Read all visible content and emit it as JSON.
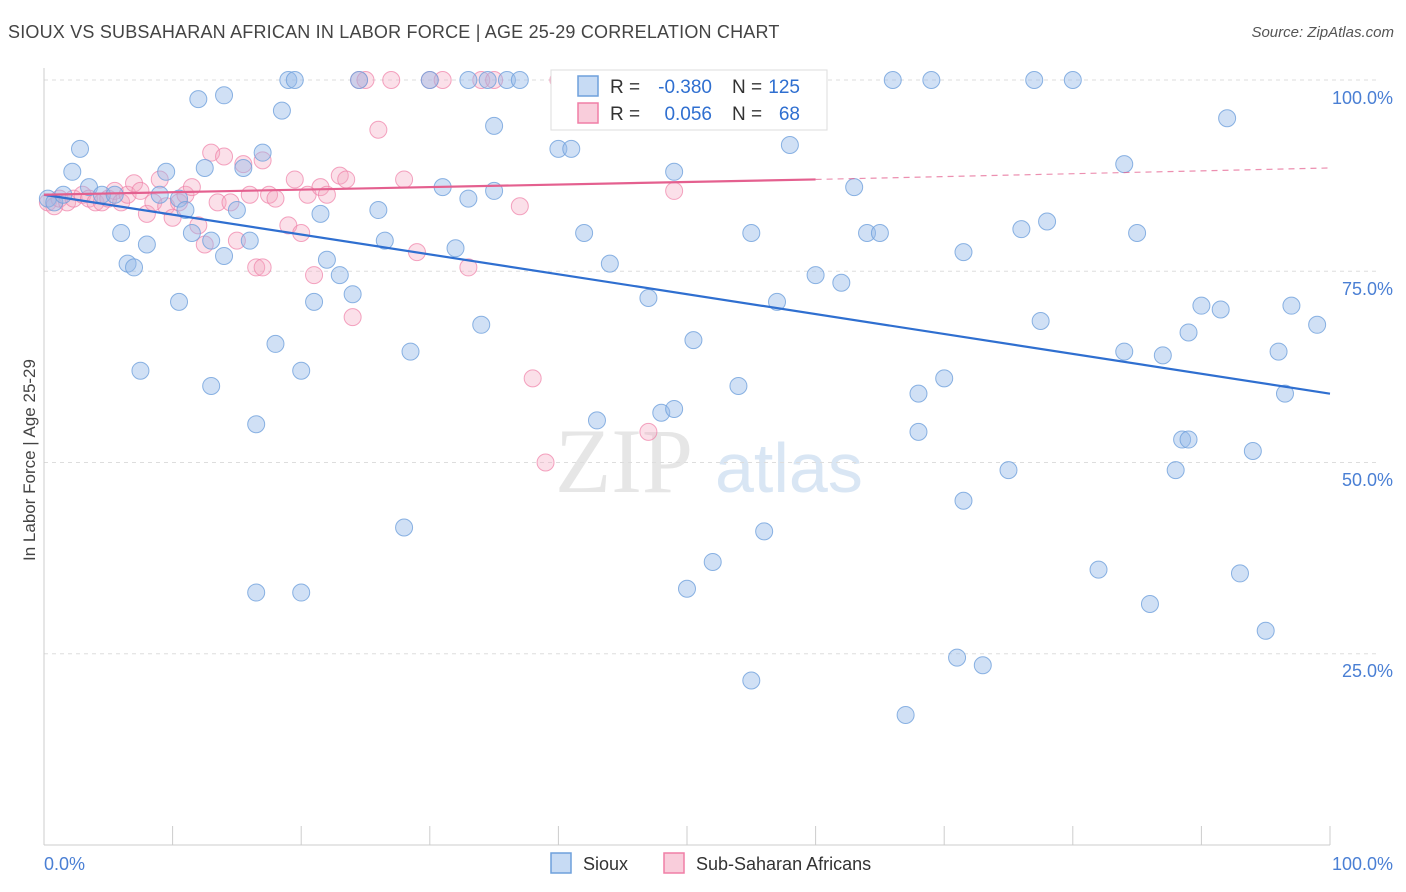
{
  "title": "SIOUX VS SUBSAHARAN AFRICAN IN LABOR FORCE | AGE 25-29 CORRELATION CHART",
  "source": "Source: ZipAtlas.com",
  "watermark": {
    "zip": "ZIP",
    "atlas": "atlas"
  },
  "colors": {
    "sioux": "#6fa0dc",
    "sioux_line": "#2f6fd0",
    "african": "#f07fa6",
    "african_line": "#e4608f",
    "tick_text": "#4a7fd4"
  },
  "legend_box": {
    "rows": [
      {
        "r_label": "R =",
        "r_value": "-0.380",
        "n_label": "N =",
        "n_value": "125"
      },
      {
        "r_label": "R =",
        "r_value": "0.056",
        "n_label": "N =",
        "n_value": "68"
      }
    ]
  },
  "bottom_legend": [
    "Sioux",
    "Sub-Saharan Africans"
  ],
  "chart_data": {
    "type": "scatter",
    "title": "SIOUX VS SUBSAHARAN AFRICAN IN LABOR FORCE | AGE 25-29 CORRELATION CHART",
    "xlabel": "",
    "ylabel": "In Labor Force | Age 25-29",
    "xlim": [
      0,
      100
    ],
    "ylim": [
      0,
      100
    ],
    "x_tick_labels": [
      "0.0%",
      "100.0%"
    ],
    "y_tick_labels": [
      "100.0%",
      "75.0%",
      "50.0%",
      "25.0%"
    ],
    "y_ticks": [
      100,
      75,
      50,
      25
    ],
    "grid": "horizontal dashed",
    "legend_position": "top-center",
    "series": [
      {
        "name": "Sioux",
        "r": -0.38,
        "n": 125,
        "trend": {
          "x": [
            0,
            100
          ],
          "y": [
            85,
            59
          ]
        },
        "points": [
          [
            0.3,
            84.5
          ],
          [
            0.8,
            84
          ],
          [
            1.5,
            85
          ],
          [
            2.2,
            88
          ],
          [
            2.8,
            91
          ],
          [
            3.5,
            86
          ],
          [
            4.5,
            85
          ],
          [
            5.5,
            85
          ],
          [
            6,
            80
          ],
          [
            6.5,
            76
          ],
          [
            7,
            75.5
          ],
          [
            7.5,
            62
          ],
          [
            8,
            78.5
          ],
          [
            9,
            85
          ],
          [
            9.5,
            88
          ],
          [
            10.5,
            84.5
          ],
          [
            10.5,
            71
          ],
          [
            11,
            83
          ],
          [
            11.5,
            80
          ],
          [
            12,
            97.5
          ],
          [
            12.5,
            88.5
          ],
          [
            13,
            79
          ],
          [
            13,
            60
          ],
          [
            14,
            98
          ],
          [
            14,
            77
          ],
          [
            15,
            83
          ],
          [
            15.5,
            88.5
          ],
          [
            16,
            79
          ],
          [
            16.5,
            55
          ],
          [
            16.5,
            33
          ],
          [
            17,
            90.5
          ],
          [
            18,
            65.5
          ],
          [
            18.5,
            96
          ],
          [
            19,
            100
          ],
          [
            19.5,
            100
          ],
          [
            20,
            62
          ],
          [
            20,
            33
          ],
          [
            21,
            71
          ],
          [
            21.5,
            82.5
          ],
          [
            22,
            76.5
          ],
          [
            23,
            74.5
          ],
          [
            24,
            72
          ],
          [
            24.5,
            100
          ],
          [
            26,
            83
          ],
          [
            26.5,
            79
          ],
          [
            28,
            41.5
          ],
          [
            28.5,
            64.5
          ],
          [
            30,
            100
          ],
          [
            31,
            86
          ],
          [
            32,
            78
          ],
          [
            33,
            84.5
          ],
          [
            33,
            100
          ],
          [
            34,
            68
          ],
          [
            34.5,
            100
          ],
          [
            35,
            94
          ],
          [
            35,
            85.5
          ],
          [
            36,
            100
          ],
          [
            37,
            100
          ],
          [
            40,
            91
          ],
          [
            41,
            91
          ],
          [
            42,
            80
          ],
          [
            43,
            55.5
          ],
          [
            44,
            76
          ],
          [
            47,
            71.5
          ],
          [
            48,
            56.5
          ],
          [
            49,
            57
          ],
          [
            49,
            88
          ],
          [
            50,
            33.5
          ],
          [
            50.5,
            66
          ],
          [
            52,
            37
          ],
          [
            54,
            60
          ],
          [
            55,
            21.5
          ],
          [
            55,
            80
          ],
          [
            56,
            41
          ],
          [
            57,
            71
          ],
          [
            58,
            91.5
          ],
          [
            58,
            100
          ],
          [
            60,
            74.5
          ],
          [
            62,
            73.5
          ],
          [
            63,
            86
          ],
          [
            64,
            80
          ],
          [
            65,
            80
          ],
          [
            66,
            100
          ],
          [
            67,
            17
          ],
          [
            68,
            59
          ],
          [
            68,
            54
          ],
          [
            69,
            100
          ],
          [
            70,
            61
          ],
          [
            71,
            24.5
          ],
          [
            71.5,
            45
          ],
          [
            71.5,
            77.5
          ],
          [
            73,
            23.5
          ],
          [
            75,
            49
          ],
          [
            76,
            80.5
          ],
          [
            77,
            100
          ],
          [
            77.5,
            68.5
          ],
          [
            78,
            81.5
          ],
          [
            80,
            100
          ],
          [
            82,
            36
          ],
          [
            84,
            64.5
          ],
          [
            84,
            89
          ],
          [
            85,
            80
          ],
          [
            86,
            31.5
          ],
          [
            87,
            64
          ],
          [
            88,
            49
          ],
          [
            88.5,
            53
          ],
          [
            89,
            53
          ],
          [
            89,
            67
          ],
          [
            90,
            70.5
          ],
          [
            91.5,
            70
          ],
          [
            92,
            95
          ],
          [
            93,
            35.5
          ],
          [
            94,
            51.5
          ],
          [
            95,
            28
          ],
          [
            96,
            64.5
          ],
          [
            96.5,
            59
          ],
          [
            97,
            70.5
          ],
          [
            99,
            68
          ]
        ]
      },
      {
        "name": "Sub-Saharan Africans",
        "r": 0.056,
        "n": 68,
        "trend": {
          "x": [
            0,
            60
          ],
          "y": [
            85,
            87
          ]
        },
        "trend_ext": {
          "x": [
            60,
            100
          ],
          "y": [
            87,
            88.5
          ]
        },
        "points": [
          [
            0.3,
            84
          ],
          [
            0.8,
            83.5
          ],
          [
            1.2,
            84.5
          ],
          [
            1.8,
            84
          ],
          [
            2.3,
            84.5
          ],
          [
            3,
            85
          ],
          [
            3.5,
            84.5
          ],
          [
            4,
            84
          ],
          [
            4.5,
            84
          ],
          [
            5,
            84.5
          ],
          [
            5.5,
            85.5
          ],
          [
            6,
            84
          ],
          [
            6.5,
            85
          ],
          [
            7,
            86.5
          ],
          [
            7.5,
            85.5
          ],
          [
            8,
            82.5
          ],
          [
            8.5,
            84
          ],
          [
            9,
            87
          ],
          [
            9.5,
            83.5
          ],
          [
            10,
            82
          ],
          [
            10.5,
            84
          ],
          [
            11,
            85
          ],
          [
            11.5,
            86
          ],
          [
            12,
            81
          ],
          [
            12.5,
            78.5
          ],
          [
            13,
            90.5
          ],
          [
            13.5,
            84
          ],
          [
            14,
            90
          ],
          [
            14.5,
            84
          ],
          [
            15,
            79
          ],
          [
            15.5,
            89
          ],
          [
            16,
            85
          ],
          [
            16.5,
            75.5
          ],
          [
            17,
            89.5
          ],
          [
            17,
            75.5
          ],
          [
            17.5,
            85
          ],
          [
            18,
            84.5
          ],
          [
            19,
            81
          ],
          [
            19.5,
            87
          ],
          [
            20,
            80
          ],
          [
            20.5,
            85
          ],
          [
            21,
            74.5
          ],
          [
            21.5,
            86
          ],
          [
            22,
            85
          ],
          [
            23,
            87.5
          ],
          [
            23.5,
            87
          ],
          [
            24,
            69
          ],
          [
            24.5,
            100
          ],
          [
            25,
            100
          ],
          [
            26,
            93.5
          ],
          [
            27,
            100
          ],
          [
            28,
            87
          ],
          [
            29,
            77.5
          ],
          [
            30,
            100
          ],
          [
            31,
            100
          ],
          [
            33,
            75.5
          ],
          [
            34,
            100
          ],
          [
            35,
            100
          ],
          [
            37,
            83.5
          ],
          [
            38,
            61
          ],
          [
            39,
            50
          ],
          [
            40,
            100
          ],
          [
            42,
            100
          ],
          [
            47,
            54
          ],
          [
            49,
            85.5
          ],
          [
            55,
            100
          ],
          [
            59,
            100
          ]
        ]
      }
    ]
  }
}
